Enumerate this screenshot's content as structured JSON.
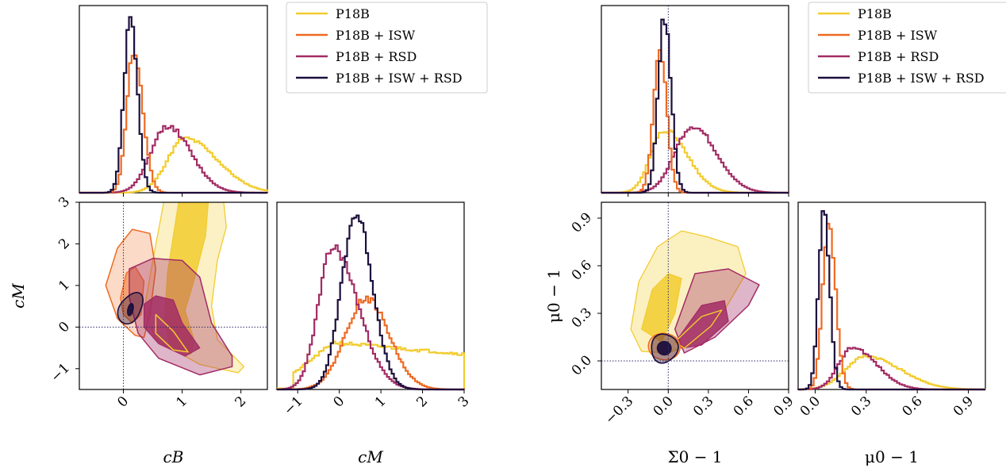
{
  "chart_data": [
    {
      "type": "histogram",
      "panel": "left-top",
      "variable": "c_B",
      "xlim": [
        -0.75,
        2.45
      ],
      "series": [
        {
          "name": "P18B",
          "mode": 1.05,
          "width": 0.45,
          "peak": 0.31
        },
        {
          "name": "P18B + ISW",
          "mode": 0.18,
          "width": 0.14,
          "peak": 0.81
        },
        {
          "name": "P18B + RSD",
          "mode": 0.75,
          "width": 0.32,
          "peak": 0.38
        },
        {
          "name": "P18B + ISW + RSD",
          "mode": 0.12,
          "width": 0.12,
          "peak": 1.0
        }
      ]
    },
    {
      "type": "contour",
      "panel": "left-2d",
      "xlabel": "c_B",
      "ylabel": "c_M",
      "xlim": [
        -0.75,
        2.45
      ],
      "ylim": [
        -1.5,
        3
      ],
      "xticks": [
        "0",
        "1",
        "2"
      ],
      "yticks": [
        "−1",
        "0",
        "1",
        "2",
        "3"
      ],
      "fiducial": {
        "x": 0,
        "y": 0
      }
    },
    {
      "type": "histogram",
      "panel": "left-diag",
      "xlabel": "c_M",
      "xlim": [
        -1.5,
        3
      ],
      "xticks": [
        "−1",
        "0",
        "1",
        "2",
        "3"
      ],
      "series": [
        {
          "name": "P18B",
          "shape": "broad plateau 0.15 – 0.25 from c_M ≈ −0.5 to 3"
        },
        {
          "name": "P18B + ISW",
          "mode": 0.65,
          "peak": 0.52
        },
        {
          "name": "P18B + RSD",
          "mode": -0.15,
          "peak": 0.81
        },
        {
          "name": "P18B + ISW + RSD",
          "mode": 0.4,
          "peak": 1.0
        }
      ]
    },
    {
      "type": "histogram",
      "panel": "right-top",
      "variable": "Σ0 − 1",
      "xlim": [
        -0.5,
        0.9
      ],
      "series": [
        {
          "name": "P18B",
          "mode": -0.03,
          "peak": 0.36
        },
        {
          "name": "P18B + ISW",
          "mode": -0.06,
          "peak": 0.81
        },
        {
          "name": "P18B + RSD",
          "mode": 0.18,
          "peak": 0.38
        },
        {
          "name": "P18B + ISW + RSD",
          "mode": -0.03,
          "peak": 1.0
        }
      ]
    },
    {
      "type": "contour",
      "panel": "right-2d",
      "xlabel": "Σ0 − 1",
      "ylabel": "μ0 − 1",
      "xlim": [
        -0.5,
        0.9
      ],
      "ylim": [
        -0.18,
        1.0
      ],
      "xticks": [
        "−0.3",
        "0.0",
        "0.3",
        "0.6",
        "0.9"
      ],
      "yticks": [
        "0.0",
        "0.3",
        "0.6",
        "0.9"
      ],
      "fiducial": {
        "x": 0,
        "y": 0
      }
    },
    {
      "type": "histogram",
      "panel": "right-diag",
      "xlabel": "μ0 − 1",
      "xlim": [
        -0.1,
        1.0
      ],
      "xticks": [
        "0.0",
        "0.3",
        "0.6",
        "0.9"
      ],
      "series": [
        {
          "name": "P18B",
          "mode": 0.3,
          "peak": 0.19
        },
        {
          "name": "P18B + ISW",
          "mode": 0.08,
          "peak": 0.96
        },
        {
          "name": "P18B + RSD",
          "mode": 0.22,
          "peak": 0.24
        },
        {
          "name": "P18B + ISW + RSD",
          "mode": 0.05,
          "peak": 1.0
        }
      ]
    }
  ],
  "legend": {
    "placement": "top-right of each corner plot",
    "entries": [
      "P18B",
      "P18B + ISW",
      "P18B + RSD",
      "P18B + ISW + RSD"
    ]
  },
  "colors": {
    "P18B": "#f2cc2f",
    "P18B + ISW": "#ee6a22",
    "P18B + RSD": "#a22b64",
    "P18B + ISW + RSD": "#1c0f3d"
  }
}
